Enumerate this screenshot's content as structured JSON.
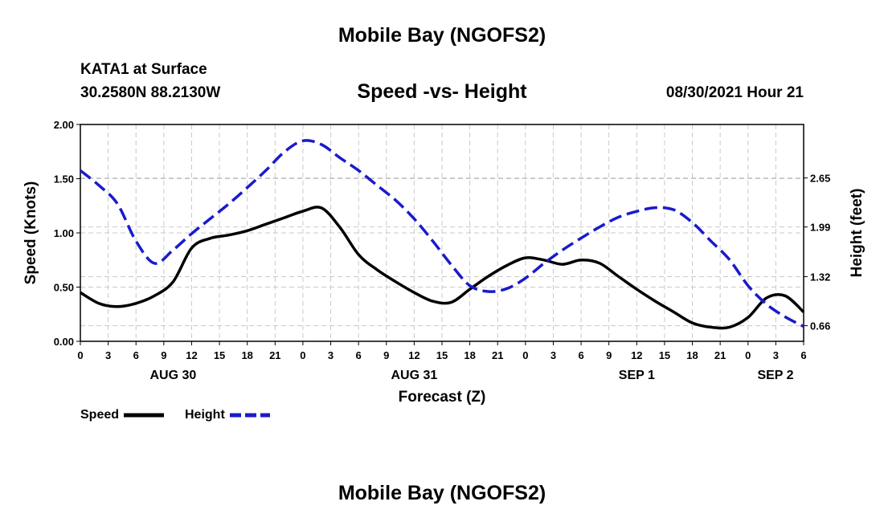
{
  "header": {
    "title": "Mobile Bay (NGOFS2)",
    "station": "KATA1 at Surface",
    "coordinates": "30.2580N  88.2130W",
    "subtitle": "Speed -vs- Height",
    "datetime": "08/30/2021 Hour 21"
  },
  "footer": {
    "title": "Mobile Bay (NGOFS2)"
  },
  "legend": {
    "speed_label": "Speed",
    "height_label": "Height"
  },
  "chart_data": {
    "type": "line",
    "xlabel": "Forecast (Z)",
    "ylabel_left": "Speed (Knots)",
    "ylabel_right": "Height (feet)",
    "x_range_hours": [
      0,
      78
    ],
    "x_tick_labels": [
      "0",
      "3",
      "6",
      "9",
      "12",
      "15",
      "18",
      "21",
      "0",
      "3",
      "6",
      "9",
      "12",
      "15",
      "18",
      "21",
      "0",
      "3",
      "6",
      "9",
      "12",
      "15",
      "18",
      "21",
      "0",
      "3",
      "6"
    ],
    "date_labels": [
      {
        "label": "AUG 30",
        "hour": 10
      },
      {
        "label": "AUG 31",
        "hour": 36
      },
      {
        "label": "SEP 1",
        "hour": 60
      },
      {
        "label": "SEP 2",
        "hour": 83
      }
    ],
    "ylim_left": [
      0,
      2.0
    ],
    "yticks_left": [
      "0.00",
      "0.50",
      "1.00",
      "1.50",
      "2.00"
    ],
    "ylim_right": [
      0.45,
      3.37
    ],
    "yticks_right": [
      "0.66",
      "1.32",
      "1.99",
      "2.65"
    ],
    "grid": true,
    "series": [
      {
        "name": "Speed",
        "color": "#000000",
        "axis": "left",
        "style": "solid",
        "x": [
          0,
          2,
          4,
          6,
          8,
          10,
          12,
          14,
          16,
          18,
          20,
          22,
          24,
          26,
          28,
          30,
          32,
          34,
          36,
          38,
          40,
          42,
          44,
          46,
          48,
          50,
          52,
          54,
          56,
          58,
          60,
          62,
          64,
          66,
          68,
          70,
          72,
          74,
          76,
          78
        ],
        "y": [
          0.45,
          0.35,
          0.32,
          0.35,
          0.42,
          0.55,
          0.86,
          0.95,
          0.98,
          1.02,
          1.08,
          1.14,
          1.2,
          1.23,
          1.05,
          0.8,
          0.66,
          0.55,
          0.45,
          0.37,
          0.36,
          0.48,
          0.6,
          0.7,
          0.77,
          0.75,
          0.71,
          0.75,
          0.72,
          0.6,
          0.48,
          0.37,
          0.27,
          0.17,
          0.13,
          0.13,
          0.22,
          0.4,
          0.42,
          0.27
        ]
      },
      {
        "name": "Height",
        "color": "#1a1acc",
        "axis": "right",
        "style": "dashed",
        "x": [
          0,
          2,
          4,
          6,
          8,
          10,
          12,
          14,
          16,
          18,
          20,
          22,
          24,
          26,
          28,
          30,
          32,
          34,
          36,
          38,
          40,
          42,
          44,
          46,
          48,
          50,
          52,
          54,
          56,
          58,
          60,
          62,
          64,
          66,
          68,
          70,
          72,
          74,
          76,
          78
        ],
        "y": [
          2.75,
          2.55,
          2.3,
          1.8,
          1.5,
          1.68,
          1.9,
          2.1,
          2.3,
          2.52,
          2.75,
          3.0,
          3.15,
          3.1,
          2.92,
          2.75,
          2.55,
          2.35,
          2.1,
          1.8,
          1.48,
          1.2,
          1.12,
          1.16,
          1.3,
          1.5,
          1.68,
          1.84,
          1.99,
          2.12,
          2.2,
          2.25,
          2.22,
          2.05,
          1.8,
          1.55,
          1.2,
          0.95,
          0.78,
          0.65
        ]
      }
    ]
  }
}
